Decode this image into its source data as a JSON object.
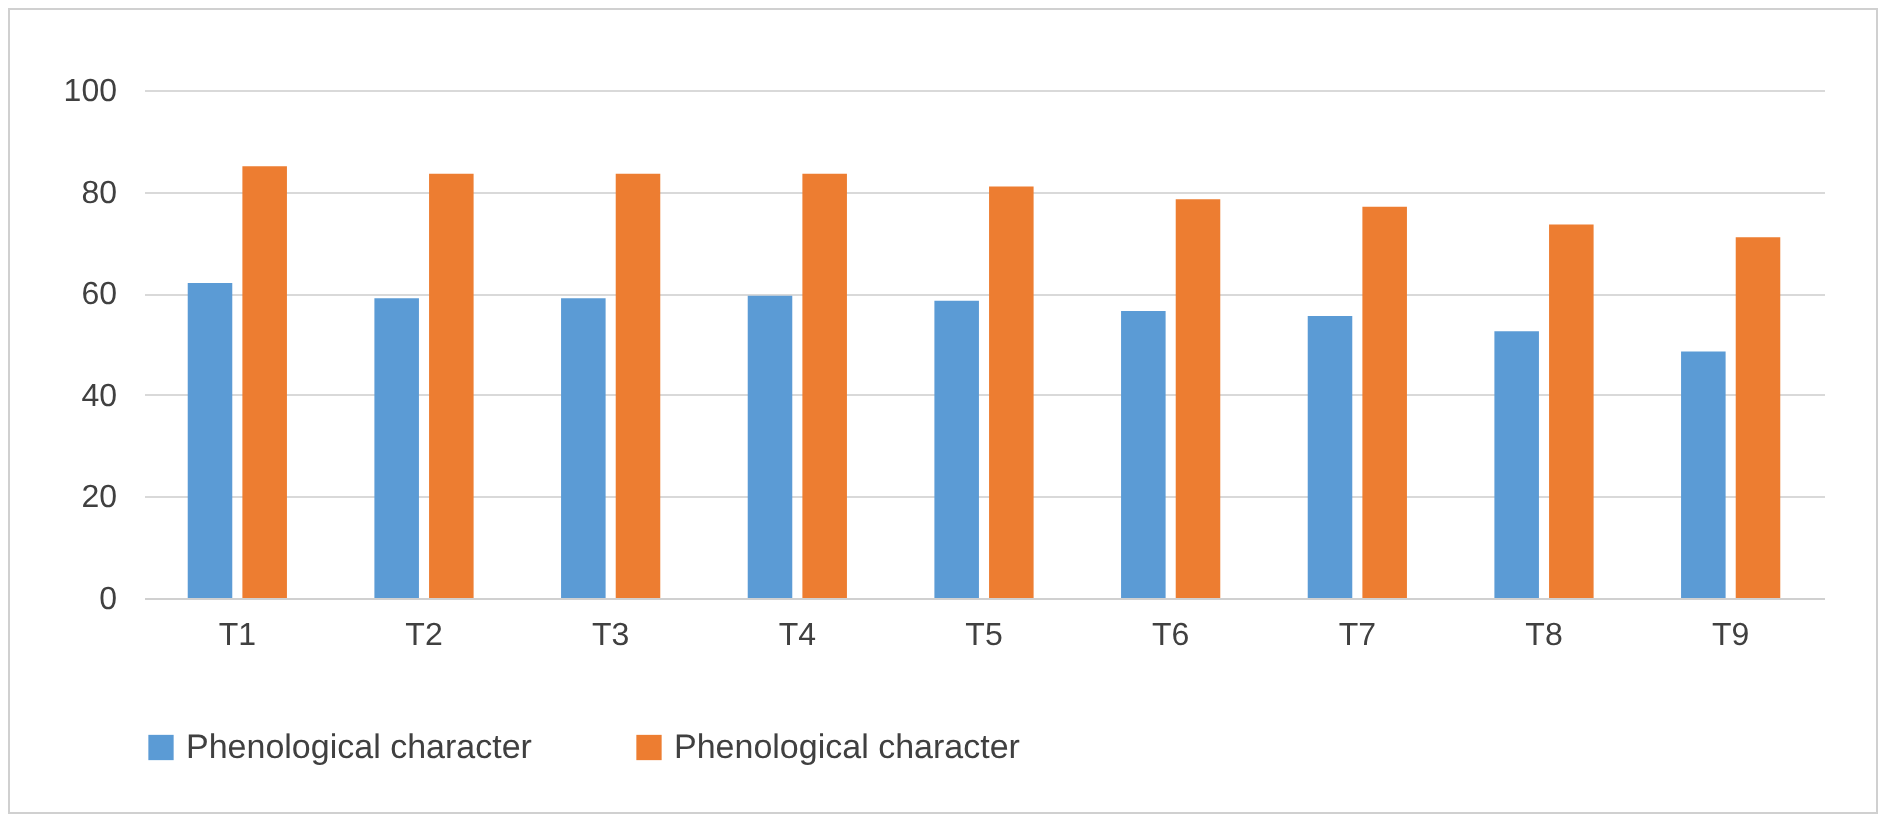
{
  "chart_data": {
    "type": "bar",
    "categories": [
      "T1",
      "T2",
      "T3",
      "T4",
      "T5",
      "T6",
      "T7",
      "T8",
      "T9"
    ],
    "series": [
      {
        "name": "Phenological character",
        "color": "#5b9bd5",
        "values": [
          62,
          59,
          59,
          59.5,
          58.5,
          56.5,
          55.5,
          52.5,
          48.5
        ]
      },
      {
        "name": "Phenological character",
        "color": "#ed7d31",
        "values": [
          85,
          83.5,
          83.5,
          83.5,
          81,
          78.5,
          77,
          73.5,
          71
        ]
      }
    ],
    "ylim": [
      0,
      100
    ],
    "yticks": [
      0,
      20,
      40,
      60,
      80,
      100
    ],
    "grid": "y",
    "legend": "bottom"
  }
}
